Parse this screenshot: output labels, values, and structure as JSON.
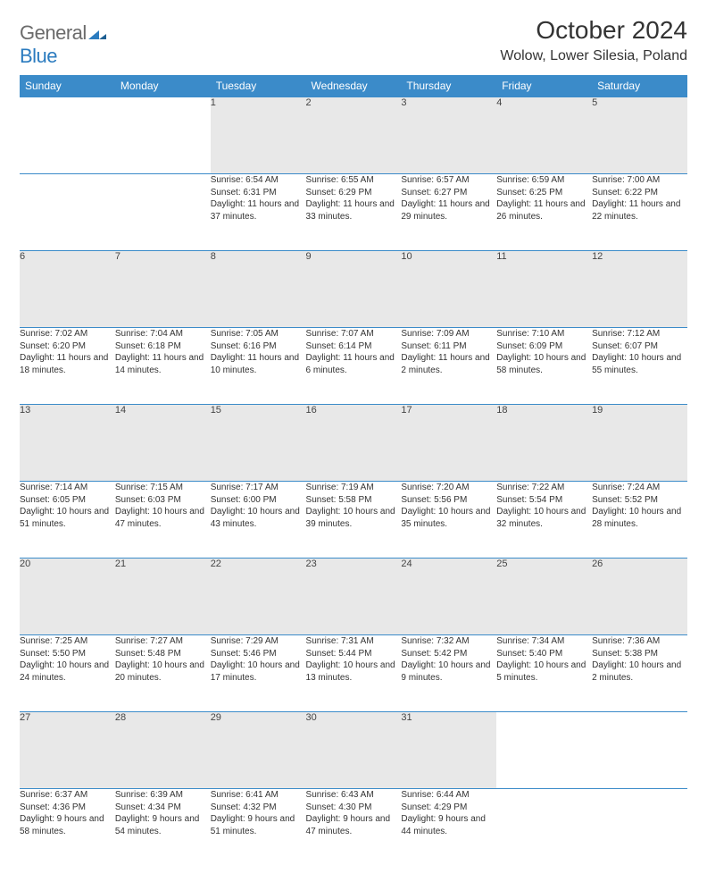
{
  "logo": {
    "general": "General",
    "blue": "Blue"
  },
  "title": "October 2024",
  "location": "Wolow, Lower Silesia, Poland",
  "colors": {
    "header_bg": "#3b8bc9",
    "header_text": "#ffffff",
    "daynum_bg": "#e8e8e8",
    "border": "#3b8bc9",
    "text": "#333333",
    "logo_gray": "#6b6b6b",
    "logo_blue": "#2b7bbf"
  },
  "weekdays": [
    "Sunday",
    "Monday",
    "Tuesday",
    "Wednesday",
    "Thursday",
    "Friday",
    "Saturday"
  ],
  "weeks": [
    [
      null,
      null,
      {
        "n": "1",
        "sr": "Sunrise: 6:54 AM",
        "ss": "Sunset: 6:31 PM",
        "dl": "Daylight: 11 hours and 37 minutes."
      },
      {
        "n": "2",
        "sr": "Sunrise: 6:55 AM",
        "ss": "Sunset: 6:29 PM",
        "dl": "Daylight: 11 hours and 33 minutes."
      },
      {
        "n": "3",
        "sr": "Sunrise: 6:57 AM",
        "ss": "Sunset: 6:27 PM",
        "dl": "Daylight: 11 hours and 29 minutes."
      },
      {
        "n": "4",
        "sr": "Sunrise: 6:59 AM",
        "ss": "Sunset: 6:25 PM",
        "dl": "Daylight: 11 hours and 26 minutes."
      },
      {
        "n": "5",
        "sr": "Sunrise: 7:00 AM",
        "ss": "Sunset: 6:22 PM",
        "dl": "Daylight: 11 hours and 22 minutes."
      }
    ],
    [
      {
        "n": "6",
        "sr": "Sunrise: 7:02 AM",
        "ss": "Sunset: 6:20 PM",
        "dl": "Daylight: 11 hours and 18 minutes."
      },
      {
        "n": "7",
        "sr": "Sunrise: 7:04 AM",
        "ss": "Sunset: 6:18 PM",
        "dl": "Daylight: 11 hours and 14 minutes."
      },
      {
        "n": "8",
        "sr": "Sunrise: 7:05 AM",
        "ss": "Sunset: 6:16 PM",
        "dl": "Daylight: 11 hours and 10 minutes."
      },
      {
        "n": "9",
        "sr": "Sunrise: 7:07 AM",
        "ss": "Sunset: 6:14 PM",
        "dl": "Daylight: 11 hours and 6 minutes."
      },
      {
        "n": "10",
        "sr": "Sunrise: 7:09 AM",
        "ss": "Sunset: 6:11 PM",
        "dl": "Daylight: 11 hours and 2 minutes."
      },
      {
        "n": "11",
        "sr": "Sunrise: 7:10 AM",
        "ss": "Sunset: 6:09 PM",
        "dl": "Daylight: 10 hours and 58 minutes."
      },
      {
        "n": "12",
        "sr": "Sunrise: 7:12 AM",
        "ss": "Sunset: 6:07 PM",
        "dl": "Daylight: 10 hours and 55 minutes."
      }
    ],
    [
      {
        "n": "13",
        "sr": "Sunrise: 7:14 AM",
        "ss": "Sunset: 6:05 PM",
        "dl": "Daylight: 10 hours and 51 minutes."
      },
      {
        "n": "14",
        "sr": "Sunrise: 7:15 AM",
        "ss": "Sunset: 6:03 PM",
        "dl": "Daylight: 10 hours and 47 minutes."
      },
      {
        "n": "15",
        "sr": "Sunrise: 7:17 AM",
        "ss": "Sunset: 6:00 PM",
        "dl": "Daylight: 10 hours and 43 minutes."
      },
      {
        "n": "16",
        "sr": "Sunrise: 7:19 AM",
        "ss": "Sunset: 5:58 PM",
        "dl": "Daylight: 10 hours and 39 minutes."
      },
      {
        "n": "17",
        "sr": "Sunrise: 7:20 AM",
        "ss": "Sunset: 5:56 PM",
        "dl": "Daylight: 10 hours and 35 minutes."
      },
      {
        "n": "18",
        "sr": "Sunrise: 7:22 AM",
        "ss": "Sunset: 5:54 PM",
        "dl": "Daylight: 10 hours and 32 minutes."
      },
      {
        "n": "19",
        "sr": "Sunrise: 7:24 AM",
        "ss": "Sunset: 5:52 PM",
        "dl": "Daylight: 10 hours and 28 minutes."
      }
    ],
    [
      {
        "n": "20",
        "sr": "Sunrise: 7:25 AM",
        "ss": "Sunset: 5:50 PM",
        "dl": "Daylight: 10 hours and 24 minutes."
      },
      {
        "n": "21",
        "sr": "Sunrise: 7:27 AM",
        "ss": "Sunset: 5:48 PM",
        "dl": "Daylight: 10 hours and 20 minutes."
      },
      {
        "n": "22",
        "sr": "Sunrise: 7:29 AM",
        "ss": "Sunset: 5:46 PM",
        "dl": "Daylight: 10 hours and 17 minutes."
      },
      {
        "n": "23",
        "sr": "Sunrise: 7:31 AM",
        "ss": "Sunset: 5:44 PM",
        "dl": "Daylight: 10 hours and 13 minutes."
      },
      {
        "n": "24",
        "sr": "Sunrise: 7:32 AM",
        "ss": "Sunset: 5:42 PM",
        "dl": "Daylight: 10 hours and 9 minutes."
      },
      {
        "n": "25",
        "sr": "Sunrise: 7:34 AM",
        "ss": "Sunset: 5:40 PM",
        "dl": "Daylight: 10 hours and 5 minutes."
      },
      {
        "n": "26",
        "sr": "Sunrise: 7:36 AM",
        "ss": "Sunset: 5:38 PM",
        "dl": "Daylight: 10 hours and 2 minutes."
      }
    ],
    [
      {
        "n": "27",
        "sr": "Sunrise: 6:37 AM",
        "ss": "Sunset: 4:36 PM",
        "dl": "Daylight: 9 hours and 58 minutes."
      },
      {
        "n": "28",
        "sr": "Sunrise: 6:39 AM",
        "ss": "Sunset: 4:34 PM",
        "dl": "Daylight: 9 hours and 54 minutes."
      },
      {
        "n": "29",
        "sr": "Sunrise: 6:41 AM",
        "ss": "Sunset: 4:32 PM",
        "dl": "Daylight: 9 hours and 51 minutes."
      },
      {
        "n": "30",
        "sr": "Sunrise: 6:43 AM",
        "ss": "Sunset: 4:30 PM",
        "dl": "Daylight: 9 hours and 47 minutes."
      },
      {
        "n": "31",
        "sr": "Sunrise: 6:44 AM",
        "ss": "Sunset: 4:29 PM",
        "dl": "Daylight: 9 hours and 44 minutes."
      },
      null,
      null
    ]
  ]
}
